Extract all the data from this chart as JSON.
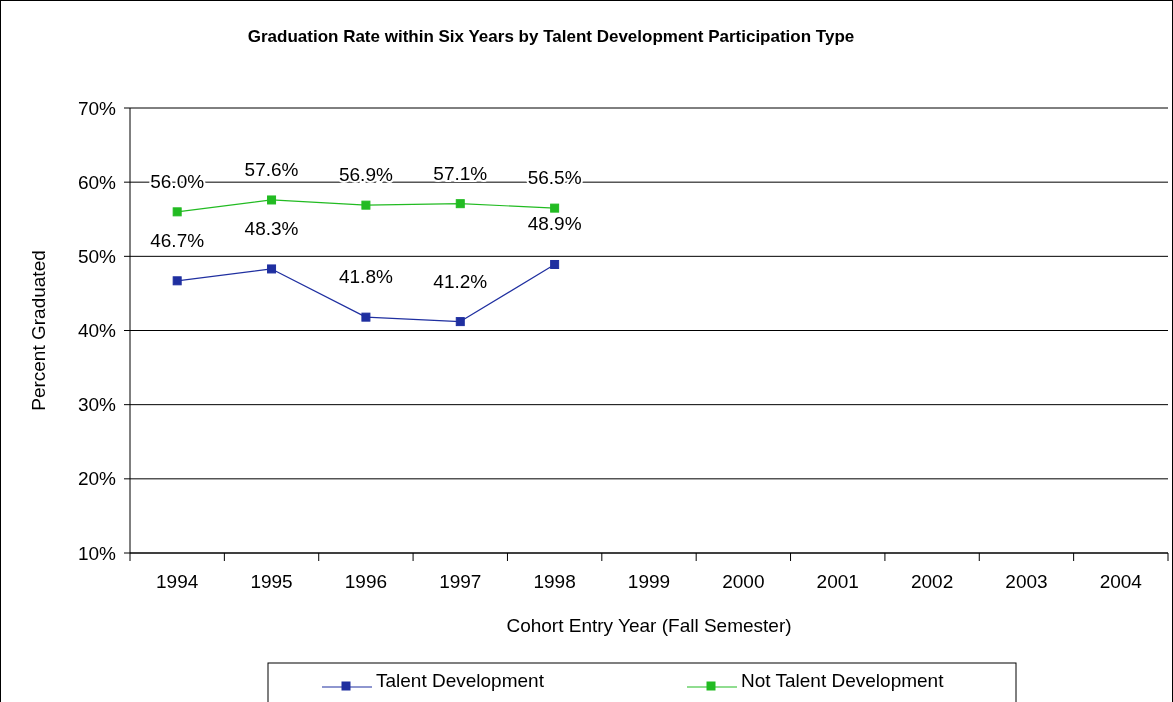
{
  "chart_data": {
    "type": "line",
    "title": "Graduation Rate within Six Years by Talent Development Participation Type",
    "xlabel": "Cohort Entry Year (Fall Semester)",
    "ylabel": "Percent Graduated",
    "categories": [
      "1994",
      "1995",
      "1996",
      "1997",
      "1998",
      "1999",
      "2000",
      "2001",
      "2002",
      "2003",
      "2004"
    ],
    "series": [
      {
        "name": "Talent Development",
        "color": "#1f2fa0",
        "values": [
          46.7,
          48.3,
          41.8,
          41.2,
          48.9,
          null,
          null,
          null,
          null,
          null,
          null
        ],
        "value_labels": [
          "46.7%",
          "48.3%",
          "41.8%",
          "41.2%",
          "48.9%",
          null,
          null,
          null,
          null,
          null,
          null
        ]
      },
      {
        "name": "Not Talent Development",
        "color": "#22bb22",
        "values": [
          56.0,
          57.6,
          56.9,
          57.1,
          56.5,
          null,
          null,
          null,
          null,
          null,
          null
        ],
        "value_labels": [
          "56.0%",
          "57.6%",
          "56.9%",
          "57.1%",
          "56.5%",
          null,
          null,
          null,
          null,
          null,
          null
        ]
      }
    ],
    "ylim": [
      10,
      70
    ],
    "yticks": [
      {
        "value": 10,
        "label": "10%"
      },
      {
        "value": 20,
        "label": "20%"
      },
      {
        "value": 30,
        "label": "30%"
      },
      {
        "value": 40,
        "label": "40%"
      },
      {
        "value": 50,
        "label": "50%"
      },
      {
        "value": 60,
        "label": "60%"
      },
      {
        "value": 70,
        "label": "70%"
      }
    ],
    "grid": "y",
    "legend": "bottom",
    "marker": "square",
    "line_style": "solid"
  }
}
